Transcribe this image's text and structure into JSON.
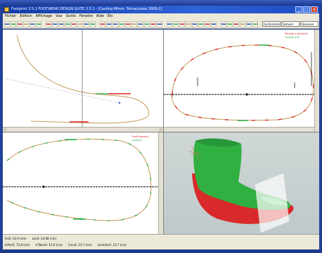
{
  "window": {
    "title": "Footprint 3.5.1 FOOTWEAR DESIGN SUITE 3.5.1 - [Casting Mirror: Tornaciones 3000-1]",
    "minimize": "_",
    "maximize": "□",
    "close": "x"
  },
  "menu": [
    "Fichier",
    "Edition",
    "Affichage",
    "Vue",
    "Outils",
    "Fenetre",
    "Aide",
    "Etc"
  ],
  "toolbar": {
    "combos": [
      "Conformite",
      "Simuler",
      "Dessiner"
    ]
  },
  "panes": {
    "top_left": {
      "legend_red": "",
      "legend_green": ""
    },
    "top_right": {
      "legend_red": "Periode matricielle",
      "legend_green": "Courbe a fit"
    },
    "bottom_left": {
      "legend_red": "Profil semelle",
      "legend_green": "Contour"
    }
  },
  "status": {
    "row1": [
      "IhsX: 23.9 (cm)",
      "LenX: 24.68 (cm)"
    ],
    "row2": [
      "ILPenX: 72.8 (cm)",
      "IcTalonX: 13.0 (cm)",
      "CinuX: 23.7 (cm)",
      "LenInterX: 23.7 (cm)"
    ]
  },
  "colors": {
    "accent_red": "#e02020",
    "accent_green": "#20b040",
    "outline_tan": "#c49a5c"
  }
}
